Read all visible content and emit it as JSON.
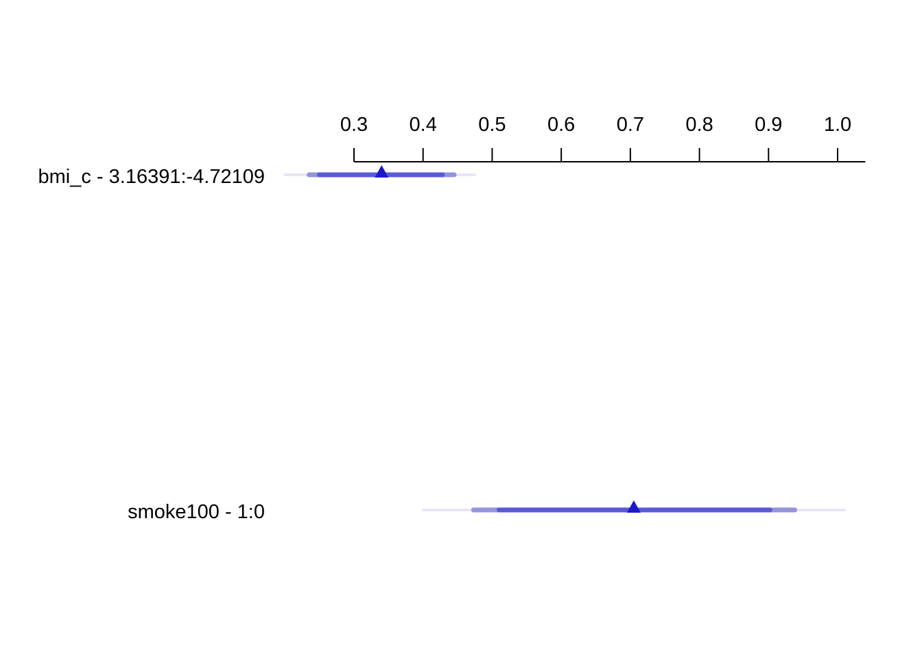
{
  "chart_data": {
    "type": "interval",
    "title": "",
    "xlabel": "",
    "ylabel": "",
    "xlim": [
      0.2,
      1.04
    ],
    "ticks": [
      0.3,
      0.4,
      0.5,
      0.6,
      0.7,
      0.8,
      0.9,
      1.0
    ],
    "tick_labels": [
      "0.3",
      "0.4",
      "0.5",
      "0.6",
      "0.7",
      "0.8",
      "0.9",
      "1.0"
    ],
    "rows": [
      {
        "label": "bmi_c - 3.16391:-4.72109",
        "estimate": 0.34,
        "intervals": [
          {
            "low": 0.2,
            "high": 0.475,
            "level": "outer"
          },
          {
            "low": 0.235,
            "high": 0.445,
            "level": "middle"
          },
          {
            "low": 0.25,
            "high": 0.428,
            "level": "inner"
          }
        ]
      },
      {
        "label": "smoke100 - 1:0",
        "estimate": 0.705,
        "intervals": [
          {
            "low": 0.4,
            "high": 1.01,
            "level": "outer"
          },
          {
            "low": 0.473,
            "high": 0.938,
            "level": "middle"
          },
          {
            "low": 0.51,
            "high": 0.902,
            "level": "inner"
          }
        ]
      }
    ],
    "colors": {
      "outer": "#e6e6f7",
      "middle": "#9494dc",
      "inner": "#5a5ad6",
      "marker": "#1a1ac8",
      "axis": "#000000"
    }
  }
}
